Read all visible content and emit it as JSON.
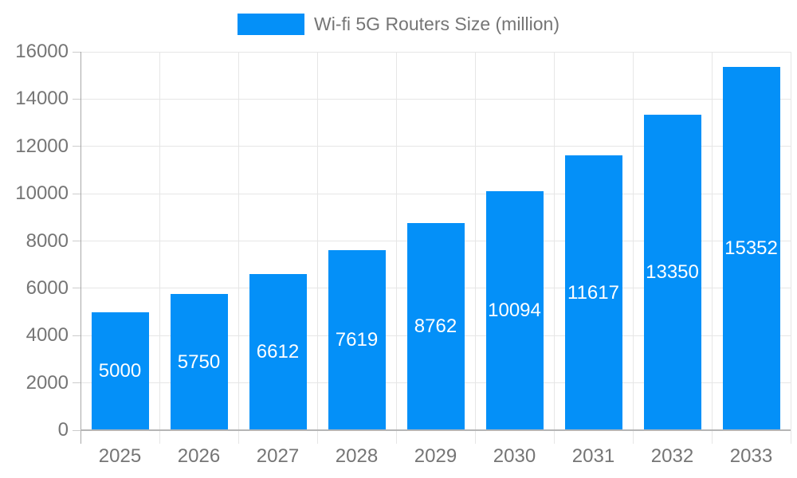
{
  "legend": {
    "label": "Wi-fi 5G Routers Size (million)"
  },
  "colors": {
    "bar": "#0490f8",
    "axis_text": "#757575",
    "gridline": "#e6e6e6",
    "tick": "#cccccc",
    "y_axis_line": "#a8a8a8",
    "baseline": "#b5b5b5",
    "value_label": "#ffffff",
    "background": "#ffffff"
  },
  "chart_data": {
    "type": "bar",
    "title": "Wi-fi 5G Routers Size (million)",
    "series_name": "Wi-fi 5G Routers Size (million)",
    "categories": [
      "2025",
      "2026",
      "2027",
      "2028",
      "2029",
      "2030",
      "2031",
      "2032",
      "2033"
    ],
    "values": [
      5000,
      5750,
      6612,
      7619,
      8762,
      10094,
      11617,
      13350,
      15352
    ],
    "xlabel": "",
    "ylabel": "",
    "ylim": [
      0,
      16000
    ],
    "ytick_step": 2000,
    "ytick_labels": [
      "0",
      "2000",
      "4000",
      "6000",
      "8000",
      "10000",
      "12000",
      "14000",
      "16000"
    ],
    "grid": true,
    "legend_position": "top-center",
    "value_label_position": "inside-center"
  }
}
